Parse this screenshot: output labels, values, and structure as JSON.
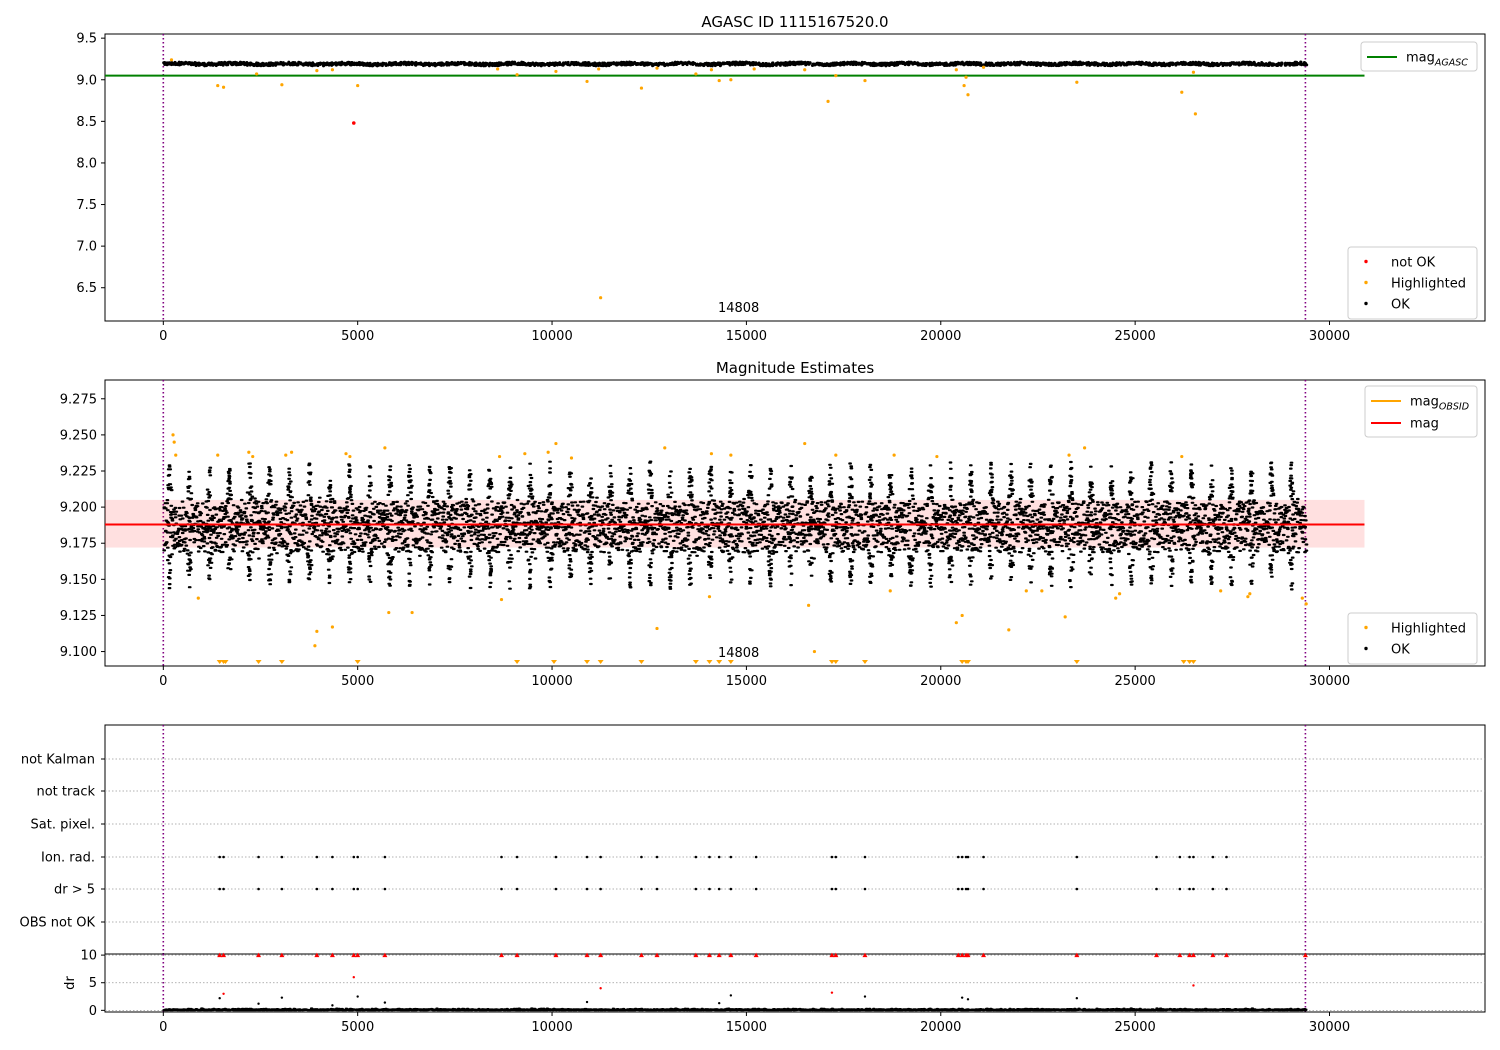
{
  "figure_title": "",
  "chart_data": [
    {
      "type": "scatter",
      "title": "AGASC ID 1115167520.0",
      "xlabel": "",
      "ylabel": "",
      "xlim": [
        -1500,
        34000
      ],
      "ylim": [
        6.1,
        9.55
      ],
      "xticks": [
        0,
        5000,
        10000,
        15000,
        20000,
        25000,
        30000
      ],
      "yticks": [
        6.5,
        7.0,
        7.5,
        8.0,
        8.5,
        9.0,
        9.5
      ],
      "obsid_label": "14808",
      "obsid_label_x": 14800,
      "vlines": [
        0,
        29380
      ],
      "hline": {
        "name": "mag_AGASC",
        "value": 9.05,
        "x_end": 30900,
        "color": "#008000"
      },
      "legend_lines": [
        {
          "name": "mag",
          "sub": "AGASC",
          "color": "#008000"
        }
      ],
      "legend_points": [
        {
          "name": "not OK",
          "color": "#ff0000"
        },
        {
          "name": "Highlighted",
          "color": "#ffa500"
        },
        {
          "name": "OK",
          "color": "#000000"
        }
      ],
      "ok_band": {
        "center": 9.19,
        "wobble": 0.018,
        "x_end": 29380
      },
      "points_highlighted": [
        [
          210,
          9.24
        ],
        [
          1400,
          8.93
        ],
        [
          1550,
          8.91
        ],
        [
          2400,
          9.07
        ],
        [
          3050,
          8.94
        ],
        [
          3950,
          9.11
        ],
        [
          4350,
          9.12
        ],
        [
          5000,
          8.93
        ],
        [
          8600,
          9.13
        ],
        [
          9100,
          9.06
        ],
        [
          10100,
          9.1
        ],
        [
          10900,
          8.98
        ],
        [
          11200,
          9.13
        ],
        [
          12300,
          8.9
        ],
        [
          12700,
          9.14
        ],
        [
          13700,
          9.07
        ],
        [
          14100,
          9.12
        ],
        [
          14300,
          8.99
        ],
        [
          14600,
          9.0
        ],
        [
          15200,
          9.13
        ],
        [
          16500,
          9.12
        ],
        [
          17100,
          8.74
        ],
        [
          17300,
          9.05
        ],
        [
          18050,
          8.99
        ],
        [
          20400,
          9.12
        ],
        [
          20600,
          8.93
        ],
        [
          20650,
          9.03
        ],
        [
          20700,
          8.82
        ],
        [
          21100,
          9.15
        ],
        [
          23500,
          8.97
        ],
        [
          26200,
          8.85
        ],
        [
          26500,
          9.09
        ],
        [
          26550,
          8.59
        ],
        [
          11250,
          6.38
        ]
      ],
      "points_not_ok": [
        [
          4900,
          8.48
        ]
      ]
    },
    {
      "type": "scatter",
      "title": "Magnitude Estimates",
      "xlabel": "",
      "ylabel": "",
      "xlim": [
        -1500,
        34000
      ],
      "ylim": [
        9.09,
        9.288
      ],
      "xticks": [
        0,
        5000,
        10000,
        15000,
        20000,
        25000,
        30000
      ],
      "yticks": [
        9.1,
        9.125,
        9.15,
        9.175,
        9.2,
        9.225,
        9.25,
        9.275
      ],
      "obsid_label": "14808",
      "obsid_label_x": 14800,
      "vlines": [
        0,
        29380
      ],
      "mag_line": {
        "name": "mag",
        "value": 9.188,
        "x_end": 30900,
        "color": "#ff0000"
      },
      "mag_band": {
        "low": 9.172,
        "high": 9.205
      },
      "mag_obsid_line": {
        "name": "mag_OBSID",
        "value": 9.188,
        "x_end": 29380,
        "color": "#ffa500"
      },
      "legend_lines": [
        {
          "name": "mag",
          "sub": "OBSID",
          "color": "#ffa500"
        },
        {
          "name": "mag",
          "sub": "",
          "color": "#ff0000"
        }
      ],
      "legend_points": [
        {
          "name": "Highlighted",
          "color": "#ffa500"
        },
        {
          "name": "OK",
          "color": "#000000"
        }
      ],
      "ok_cloud": {
        "center": 9.186,
        "core_halfwidth": 0.016,
        "spike_top": 9.232,
        "spike_bottom": 9.143,
        "x_end": 29380
      },
      "points_highlighted": [
        [
          250,
          9.25
        ],
        [
          280,
          9.245
        ],
        [
          320,
          9.236
        ],
        [
          900,
          9.137
        ],
        [
          1400,
          9.236
        ],
        [
          2200,
          9.238
        ],
        [
          2300,
          9.235
        ],
        [
          3150,
          9.236
        ],
        [
          3300,
          9.238
        ],
        [
          3900,
          9.104
        ],
        [
          3950,
          9.114
        ],
        [
          4350,
          9.117
        ],
        [
          4700,
          9.237
        ],
        [
          4800,
          9.235
        ],
        [
          5700,
          9.241
        ],
        [
          5800,
          9.127
        ],
        [
          6400,
          9.127
        ],
        [
          8700,
          9.136
        ],
        [
          8650,
          9.235
        ],
        [
          9300,
          9.237
        ],
        [
          9900,
          9.238
        ],
        [
          10100,
          9.244
        ],
        [
          10500,
          9.234
        ],
        [
          12700,
          9.116
        ],
        [
          12900,
          9.241
        ],
        [
          14050,
          9.138
        ],
        [
          14100,
          9.237
        ],
        [
          14600,
          9.236
        ],
        [
          16500,
          9.244
        ],
        [
          16600,
          9.132
        ],
        [
          16750,
          9.1
        ],
        [
          17300,
          9.236
        ],
        [
          18700,
          9.142
        ],
        [
          18800,
          9.236
        ],
        [
          19900,
          9.235
        ],
        [
          20400,
          9.12
        ],
        [
          20550,
          9.125
        ],
        [
          21750,
          9.115
        ],
        [
          22200,
          9.142
        ],
        [
          22600,
          9.142
        ],
        [
          23200,
          9.124
        ],
        [
          23300,
          9.236
        ],
        [
          23700,
          9.241
        ],
        [
          24500,
          9.137
        ],
        [
          24600,
          9.14
        ],
        [
          26200,
          9.235
        ],
        [
          27200,
          9.142
        ],
        [
          27900,
          9.138
        ],
        [
          27950,
          9.14
        ],
        [
          29300,
          9.137
        ],
        [
          29400,
          9.133
        ]
      ],
      "points_clipped": [
        1450,
        1550,
        1600,
        2450,
        3050,
        5000,
        9100,
        10050,
        10900,
        11250,
        12300,
        13700,
        14050,
        14300,
        14600,
        17200,
        17300,
        18050,
        20550,
        20650,
        20700,
        23500,
        26250,
        26400,
        26500
      ]
    },
    {
      "type": "scatter",
      "title": "",
      "xlabel": "",
      "ylabel": "",
      "xlim": [
        -1500,
        34000
      ],
      "xticks": [
        0,
        5000,
        10000,
        15000,
        20000,
        25000,
        30000
      ],
      "vlines": [
        0,
        29380
      ],
      "categories": [
        "not Kalman",
        "not track",
        "Sat. pixel.",
        "Ion. rad.",
        "dr > 5",
        "OBS not OK"
      ],
      "flag_x": [
        1450,
        1550,
        2450,
        3050,
        3950,
        4350,
        4900,
        5000,
        5700,
        8700,
        9100,
        10100,
        10900,
        11250,
        12300,
        12700,
        13700,
        14050,
        14300,
        14600,
        15250,
        17200,
        17300,
        18050,
        20450,
        20550,
        20650,
        20700,
        21100,
        23500,
        25550,
        26150,
        26400,
        26500,
        27000,
        27350
      ],
      "flag_rows": [
        "Ion. rad.",
        "dr > 5"
      ]
    },
    {
      "type": "scatter",
      "title": "",
      "xlabel": "",
      "ylabel": "dr",
      "xlim": [
        -1500,
        34000
      ],
      "ylim": [
        -0.3,
        10.2
      ],
      "xticks": [
        0,
        5000,
        10000,
        15000,
        20000,
        25000,
        30000
      ],
      "yticks": [
        0,
        5,
        10
      ],
      "vlines": [
        0,
        29380
      ],
      "clipped_value": 10,
      "points_ok": [
        [
          1450,
          2.2
        ],
        [
          2450,
          1.2
        ],
        [
          3050,
          2.3
        ],
        [
          4350,
          0.9
        ],
        [
          5000,
          2.5
        ],
        [
          5700,
          1.4
        ],
        [
          10900,
          1.5
        ],
        [
          14300,
          1.3
        ],
        [
          14600,
          2.7
        ],
        [
          18050,
          2.5
        ],
        [
          20550,
          2.3
        ],
        [
          20700,
          2.0
        ],
        [
          23500,
          2.2
        ]
      ],
      "points_not_ok": [
        [
          1550,
          3.0
        ],
        [
          4900,
          6.0
        ],
        [
          11250,
          4.0
        ],
        [
          17200,
          3.2
        ],
        [
          26500,
          4.5
        ]
      ],
      "clipped_not_ok": [
        1450,
        1550,
        2450,
        3050,
        3950,
        4350,
        4900,
        5000,
        5700,
        8700,
        9100,
        10100,
        10900,
        11250,
        12300,
        12700,
        13700,
        14050,
        14300,
        14600,
        15250,
        17200,
        17300,
        18050,
        20450,
        20550,
        20650,
        20700,
        21100,
        23500,
        25550,
        26150,
        26400,
        26500,
        27000,
        27350,
        29380
      ]
    }
  ]
}
